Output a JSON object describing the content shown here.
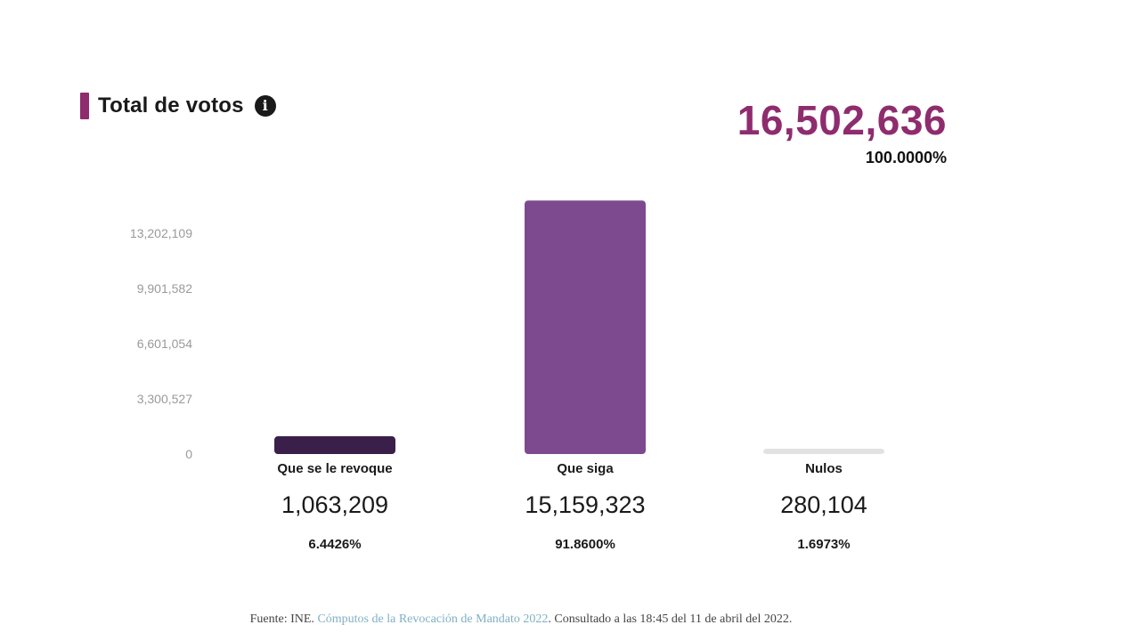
{
  "header": {
    "title": "Total de votos",
    "info_icon": "info-icon",
    "total_value": "16,502,636",
    "total_pct": "100.0000%"
  },
  "colors": {
    "accent": "#8e2c6e",
    "title_bar": "#8e2c6e",
    "bar_revoque": "#3b1f4b",
    "bar_siga": "#7e4a8f",
    "bar_nulos": "#e2e2e2",
    "tick_text": "#9a9a9a"
  },
  "chart_data": {
    "type": "bar",
    "categories": [
      "Que se le revoque",
      "Que siga",
      "Nulos"
    ],
    "values": [
      1063209,
      15159323,
      280104
    ],
    "value_labels": [
      "1,063,209",
      "15,159,323",
      "280,104"
    ],
    "percent_labels": [
      "6.4426%",
      "91.8600%",
      "1.6973%"
    ],
    "yticks": [
      0,
      3300527,
      6601054,
      9901582,
      13202109
    ],
    "ytick_labels": [
      "0",
      "3,300,527",
      "6,601,054",
      "9,901,582",
      "13,202,109"
    ],
    "ylim": [
      0,
      13202109
    ],
    "grid": false,
    "title": "Total de votos"
  },
  "footer": {
    "prefix": "Fuente: INE. ",
    "link_text": "Cómputos de la Revocación de Mandato 2022",
    "suffix": ". Consultado a las 18:45 del 11 de abril del 2022."
  }
}
